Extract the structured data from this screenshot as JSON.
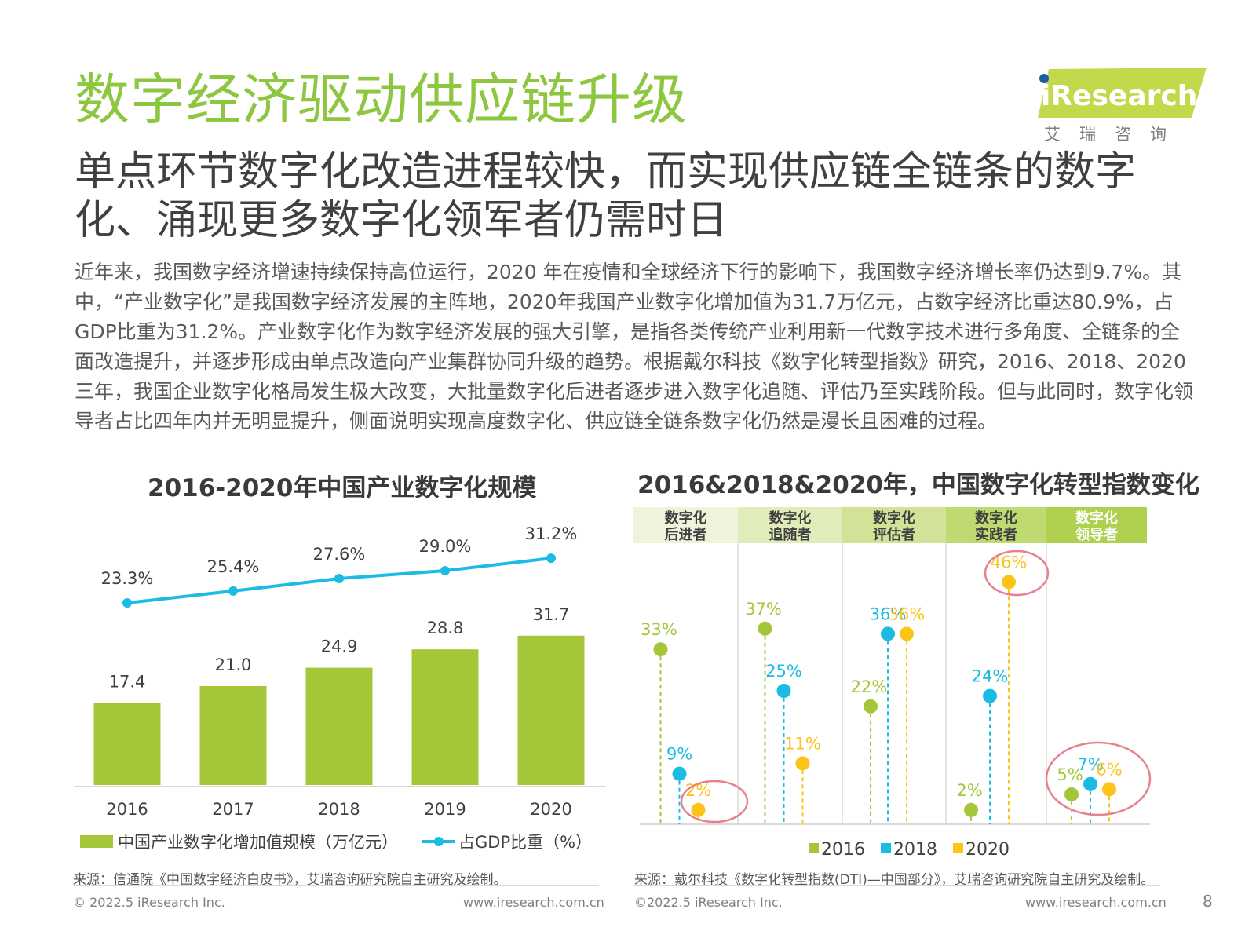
{
  "header": {
    "title": "数字经济驱动供应链升级",
    "subtitle": "单点环节数字化改造进程较快，而实现供应链全链条的数字化、涌现更多数字化领军者仍需时日",
    "body": "近年来，我国数字经济增速持续保持高位运行，2020 年在疫情和全球经济下行的影响下，我国数字经济增长率仍达到9.7%。其中，“产业数字化”是我国数字经济发展的主阵地，2020年我国产业数字化增加值为31.7万亿元，占数字经济比重达80.9%，占GDP比重为31.2%。产业数字化作为数字经济发展的强大引擎，是指各类传统产业利用新一代数字技术进行多角度、全链条的全面改造提升，并逐步形成由单点改造向产业集群协同升级的趋势。根据戴尔科技《数字化转型指数》研究，2016、2018、2020三年，我国企业数字化格局发生极大改变，大批量数字化后进者逐步进入数字化追随、评估乃至实践阶段。但与此同时，数字化领导者占比四年内并无明显提升，侧面说明实现高度数字化、供应链全链条数字化仍然是漫长且困难的过程。"
  },
  "logo": {
    "text": "iResearch",
    "cn": "艾瑞咨询",
    "accent": "#c3d84a"
  },
  "colors": {
    "green": "#a4c639",
    "blue": "#1cbbe4",
    "yellow": "#fcc319",
    "title_green": "#8dc63f",
    "circle": "#e8808b"
  },
  "chart_data": [
    {
      "type": "bar",
      "title": "2016-2020年中国产业数字化规模",
      "categories": [
        "2016",
        "2017",
        "2018",
        "2019",
        "2020"
      ],
      "series": [
        {
          "name": "中国产业数字化增加值规模（万亿元）",
          "type": "bar",
          "values": [
            17.4,
            21.0,
            24.9,
            28.8,
            31.7
          ],
          "labels": [
            "17.4",
            "21.0",
            "24.9",
            "28.8",
            "31.7"
          ]
        },
        {
          "name": "占GDP比重（%）",
          "type": "line",
          "values": [
            23.3,
            25.4,
            27.6,
            29.0,
            31.2
          ],
          "labels": [
            "23.3%",
            "25.4%",
            "27.6%",
            "29.0%",
            "31.2%"
          ]
        }
      ],
      "ylim": [
        0,
        40
      ],
      "legend": "bottom"
    },
    {
      "type": "scatter",
      "title": "2016&2018&2020年，中国数字化转型指数变化",
      "categories": [
        "数字化后进者",
        "数字化追随者",
        "数字化评估者",
        "数字化实践者",
        "数字化领导者"
      ],
      "category_lines": [
        [
          "数字化",
          "后进者"
        ],
        [
          "数字化",
          "追随者"
        ],
        [
          "数字化",
          "评估者"
        ],
        [
          "数字化",
          "实践者"
        ],
        [
          "数字化",
          "领导者"
        ]
      ],
      "series": [
        {
          "name": "2016",
          "values": [
            33,
            37,
            22,
            2,
            5
          ]
        },
        {
          "name": "2018",
          "values": [
            9,
            25,
            36,
            24,
            7
          ]
        },
        {
          "name": "2020",
          "values": [
            2,
            11,
            36,
            46,
            6
          ]
        }
      ],
      "ylim": [
        0,
        50
      ],
      "legend": "bottom",
      "highlighted": [
        [
          0,
          2
        ],
        [
          3,
          2
        ],
        [
          4,
          0
        ],
        [
          4,
          1
        ],
        [
          4,
          2
        ]
      ]
    }
  ],
  "sources": {
    "left": "来源：信通院《中国数字经济白皮书》，艾瑞咨询研究院自主研究及绘制。",
    "right": "来源：戴尔科技《数字化转型指数(DTI)—中国部分》，艾瑞咨询研究院自主研究及绘制。"
  },
  "footer": {
    "copyright_left": "© 2022.5 iResearch Inc.",
    "url_left": "www.iresearch.com.cn",
    "copyright_right": "©2022.5 iResearch Inc.",
    "url_right": "www.iresearch.com.cn",
    "page": "8"
  }
}
